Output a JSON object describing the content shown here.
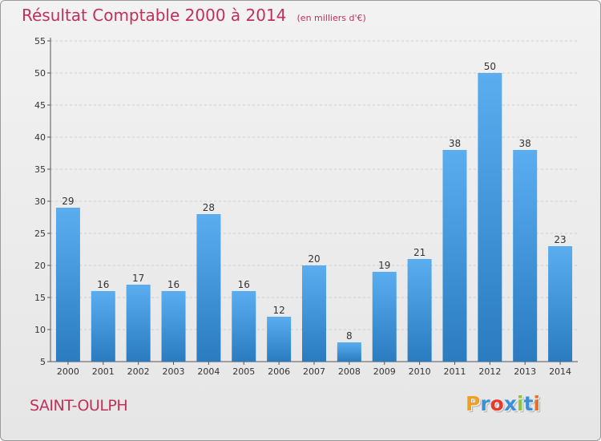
{
  "chart_data": {
    "type": "bar",
    "title": "Résultat Comptable 2000 à 2014",
    "unit_note": "(en milliers d'€)",
    "categories": [
      "2000",
      "2001",
      "2002",
      "2003",
      "2004",
      "2005",
      "2006",
      "2007",
      "2008",
      "2009",
      "2010",
      "2011",
      "2012",
      "2013",
      "2014"
    ],
    "values": [
      29,
      16,
      17,
      16,
      28,
      16,
      12,
      20,
      8,
      19,
      21,
      38,
      50,
      38,
      23
    ],
    "ylim": [
      5,
      55
    ],
    "yticks": [
      5,
      10,
      15,
      20,
      25,
      30,
      35,
      40,
      45,
      50,
      55
    ],
    "grid": true,
    "xlabel": "",
    "ylabel": ""
  },
  "commune": "SAINT-OULPH",
  "logo": {
    "letters": [
      "P",
      "r",
      "o",
      "x",
      "i",
      "t",
      "i"
    ],
    "colors": [
      "#f0a020",
      "#3a8fd6",
      "#e83a2a",
      "#3a8fd6",
      "#8cc43a",
      "#3a8fd6",
      "#e86f2a"
    ]
  },
  "colors": {
    "bar_top": "#5aaef0",
    "bar_bottom": "#2a7bc0",
    "title": "#c0305a"
  }
}
